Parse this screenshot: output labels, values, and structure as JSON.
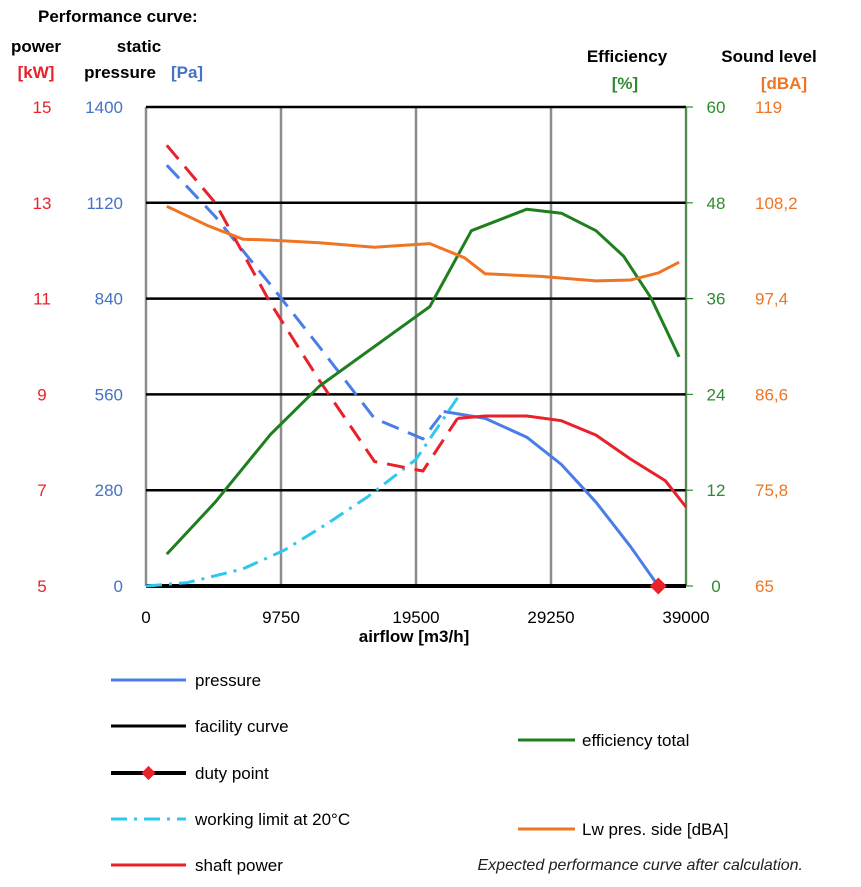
{
  "chart_data": {
    "type": "line",
    "title": "Performance curve:",
    "subtitle": "Expected performance curve after calculation.",
    "xlabel": "airflow [m3/h]",
    "xlim": [
      0,
      39000
    ],
    "x_ticks": [
      "0",
      "9750",
      "19500",
      "29250",
      "39000"
    ],
    "axes": {
      "power": {
        "label_line1": "power",
        "unit": "[kW]",
        "range": [
          5,
          15
        ],
        "ticks": [
          "5",
          "7",
          "9",
          "11",
          "13",
          "15"
        ],
        "color": "#e8212b"
      },
      "pressure": {
        "label_line1": "static",
        "label_line2": "pressure",
        "unit": "[Pa]",
        "range": [
          0,
          1400
        ],
        "ticks": [
          "0",
          "280",
          "560",
          "840",
          "1120",
          "1400"
        ],
        "color": "#4472c4"
      },
      "efficiency": {
        "label_line1": "Efficiency",
        "unit": "[%]",
        "range": [
          0,
          60
        ],
        "ticks": [
          "0",
          "12",
          "24",
          "36",
          "48",
          "60"
        ],
        "color": "#2e8b2e"
      },
      "sound": {
        "label_line1": "Sound level",
        "unit": "[dBA]",
        "range": [
          65,
          119
        ],
        "ticks": [
          "65",
          "75,8",
          "86,6",
          "97,4",
          "108,2",
          "119"
        ],
        "color": "#ee7523"
      }
    },
    "grid": true,
    "legend_placement": "bottom",
    "series": [
      {
        "name": "pressure",
        "axis": "pressure",
        "color": "#4a7de8",
        "style": "solid",
        "points": [
          [
            21500,
            510
          ],
          [
            24500,
            490
          ],
          [
            27500,
            435
          ],
          [
            30000,
            355
          ],
          [
            32500,
            245
          ],
          [
            35000,
            115
          ],
          [
            37000,
            0
          ]
        ]
      },
      {
        "name": "pressure",
        "axis": "pressure",
        "color": "#4a7de8",
        "style": "dashed",
        "points": [
          [
            1500,
            1230
          ],
          [
            5000,
            1080
          ],
          [
            9000,
            880
          ],
          [
            12500,
            700
          ],
          [
            16500,
            490
          ],
          [
            20000,
            430
          ],
          [
            21500,
            510
          ]
        ]
      },
      {
        "name": "facility curve",
        "axis": "pressure",
        "color": "#000000",
        "style": "solid",
        "points": [
          [
            0,
            0
          ],
          [
            39000,
            0
          ]
        ]
      },
      {
        "name": "duty point",
        "axis": "pressure",
        "color": "#e8212b",
        "style": "marker",
        "points": [
          [
            37000,
            0
          ]
        ]
      },
      {
        "name": "working limit at 20°C",
        "axis": "pressure",
        "color": "#2ec8f0",
        "style": "dashdot",
        "points": [
          [
            0,
            0
          ],
          [
            3000,
            10
          ],
          [
            7000,
            50
          ],
          [
            10000,
            105
          ],
          [
            13000,
            180
          ],
          [
            16000,
            260
          ],
          [
            19500,
            370
          ],
          [
            22500,
            550
          ]
        ]
      },
      {
        "name": "shaft power",
        "axis": "power",
        "color": "#e8212b",
        "style": "dashed",
        "points": [
          [
            1500,
            14.2
          ],
          [
            5000,
            13.0
          ],
          [
            9000,
            10.9
          ],
          [
            12500,
            9.3
          ],
          [
            16500,
            7.6
          ],
          [
            20000,
            7.4
          ],
          [
            22500,
            8.5
          ]
        ]
      },
      {
        "name": "shaft power",
        "axis": "power",
        "color": "#e8212b",
        "style": "solid",
        "points": [
          [
            22500,
            8.5
          ],
          [
            24500,
            8.55
          ],
          [
            27500,
            8.55
          ],
          [
            30000,
            8.45
          ],
          [
            32500,
            8.15
          ],
          [
            35000,
            7.65
          ],
          [
            37500,
            7.2
          ],
          [
            39000,
            6.65
          ]
        ]
      },
      {
        "name": "efficiency total",
        "axis": "efficiency",
        "color": "#1f7f1f",
        "style": "solid",
        "points": [
          [
            1500,
            4
          ],
          [
            5000,
            10.5
          ],
          [
            9000,
            19
          ],
          [
            12500,
            25
          ],
          [
            16500,
            30
          ],
          [
            20500,
            35
          ],
          [
            23500,
            44.5
          ],
          [
            27500,
            47.2
          ],
          [
            30000,
            46.7
          ],
          [
            32500,
            44.5
          ],
          [
            34500,
            41.3
          ],
          [
            36500,
            36
          ],
          [
            38500,
            28.7
          ]
        ]
      },
      {
        "name": "Lw pres. side [dBA]",
        "axis": "sound",
        "color": "#ee7523",
        "style": "solid",
        "points": [
          [
            1500,
            107.8
          ],
          [
            4500,
            105.6
          ],
          [
            7000,
            104.1
          ],
          [
            9000,
            104.0
          ],
          [
            12500,
            103.7
          ],
          [
            16500,
            103.2
          ],
          [
            20500,
            103.6
          ],
          [
            23000,
            102.0
          ],
          [
            24500,
            100.2
          ],
          [
            28500,
            99.9
          ],
          [
            32500,
            99.4
          ],
          [
            35000,
            99.5
          ],
          [
            37000,
            100.3
          ],
          [
            38500,
            101.5
          ]
        ]
      }
    ]
  },
  "legend": {
    "left": [
      {
        "label": "pressure",
        "color": "#4a7de8",
        "style": "solid"
      },
      {
        "label": "facility curve",
        "color": "#000000",
        "style": "solid"
      },
      {
        "label": "duty point",
        "color": "#000000",
        "style": "marker"
      },
      {
        "label": "working limit at 20°C",
        "color": "#2ec8f0",
        "style": "dashdot"
      },
      {
        "label": "shaft power",
        "color": "#e8212b",
        "style": "solid"
      }
    ],
    "right": [
      {
        "label": "efficiency total",
        "color": "#1f7f1f",
        "style": "solid"
      },
      {
        "label": "Lw pres. side [dBA]",
        "color": "#ee7523",
        "style": "solid"
      }
    ]
  },
  "footnote": "Expected performance curve after calculation."
}
